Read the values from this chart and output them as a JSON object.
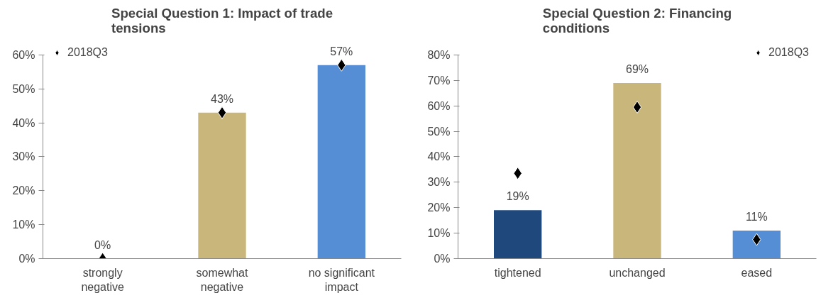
{
  "chart_data": [
    {
      "type": "bar",
      "title": "Special Question 1: Impact of trade tensions",
      "categories": [
        "strongly negative",
        "somewhat negative",
        "no significant impact"
      ],
      "series": [
        {
          "values": [
            0,
            43,
            57
          ],
          "colors": [
            "#1f497d",
            "#c9b67a",
            "#558ed5"
          ],
          "value_labels": [
            "0%",
            "43%",
            "57%"
          ]
        },
        {
          "type": "scatter",
          "name": "2018Q3",
          "x": [
            "strongly negative",
            "somewhat negative",
            "no significant impact"
          ],
          "values": [
            0,
            43,
            57
          ],
          "color": "#000000"
        }
      ],
      "ylim": [
        0,
        60
      ],
      "yticks": [
        {
          "value": 0,
          "label": "0%"
        },
        {
          "value": 10,
          "label": "10%"
        },
        {
          "value": 20,
          "label": "20%"
        },
        {
          "value": 30,
          "label": "30%"
        },
        {
          "value": 40,
          "label": "40%"
        },
        {
          "value": 50,
          "label": "50%"
        },
        {
          "value": 60,
          "label": "60%"
        }
      ],
      "marker": "diamond",
      "legend": "top left",
      "grid": false
    },
    {
      "type": "bar",
      "title": "Special Question 2: Financing conditions",
      "categories": [
        "tightened",
        "unchanged",
        "eased"
      ],
      "series": [
        {
          "values": [
            19,
            69,
            11
          ],
          "colors": [
            "#1f497d",
            "#c9b67a",
            "#558ed5"
          ],
          "value_labels": [
            "19%",
            "69%",
            "11%"
          ]
        },
        {
          "type": "scatter",
          "name": "2018Q3",
          "x": [
            "tightened",
            "unchanged",
            "eased"
          ],
          "values": [
            33.5,
            59.5,
            7.5
          ],
          "color": "#000000"
        }
      ],
      "ylim": [
        0,
        80
      ],
      "yticks": [
        {
          "value": 0,
          "label": "0%"
        },
        {
          "value": 10,
          "label": "10%"
        },
        {
          "value": 20,
          "label": "20%"
        },
        {
          "value": 30,
          "label": "30%"
        },
        {
          "value": 40,
          "label": "40%"
        },
        {
          "value": 50,
          "label": "50%"
        },
        {
          "value": 60,
          "label": "60%"
        },
        {
          "value": 70,
          "label": "70%"
        },
        {
          "value": 80,
          "label": "80%"
        }
      ],
      "marker": "diamond",
      "legend": "top right",
      "grid": false
    }
  ]
}
